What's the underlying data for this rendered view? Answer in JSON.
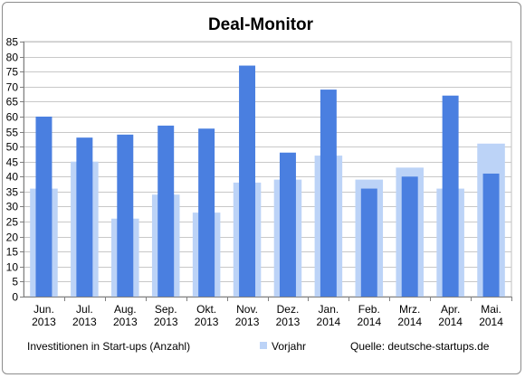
{
  "chart_data": {
    "type": "bar",
    "title": "Deal-Monitor",
    "categories": [
      [
        "Jun.",
        "2013"
      ],
      [
        "Jul.",
        "2013"
      ],
      [
        "Aug.",
        "2013"
      ],
      [
        "Sep.",
        "2013"
      ],
      [
        "Okt.",
        "2013"
      ],
      [
        "Nov.",
        "2013"
      ],
      [
        "Dez.",
        "2013"
      ],
      [
        "Jan.",
        "2014"
      ],
      [
        "Feb.",
        "2014"
      ],
      [
        "Mrz.",
        "2014"
      ],
      [
        "Apr.",
        "2014"
      ],
      [
        "Mai.",
        "2014"
      ]
    ],
    "series": [
      {
        "name": "Investitionen  in Start-ups (Anzahl)",
        "color": "#4a7fe0",
        "values": [
          60,
          53,
          54,
          57,
          56,
          77,
          48,
          69,
          36,
          40,
          67,
          41
        ]
      },
      {
        "name": "Vorjahr",
        "color": "#bcd3f7",
        "values": [
          36,
          45,
          26,
          34,
          28,
          38,
          39,
          47,
          39,
          43,
          36,
          51
        ]
      }
    ],
    "ylim": [
      0,
      85
    ],
    "yticks": [
      0,
      5,
      10,
      15,
      20,
      25,
      30,
      35,
      40,
      45,
      50,
      55,
      60,
      65,
      70,
      75,
      80,
      85
    ],
    "grid": true,
    "legend_position": "bottom"
  },
  "source_note": "Quelle: deutsche-startups.de"
}
